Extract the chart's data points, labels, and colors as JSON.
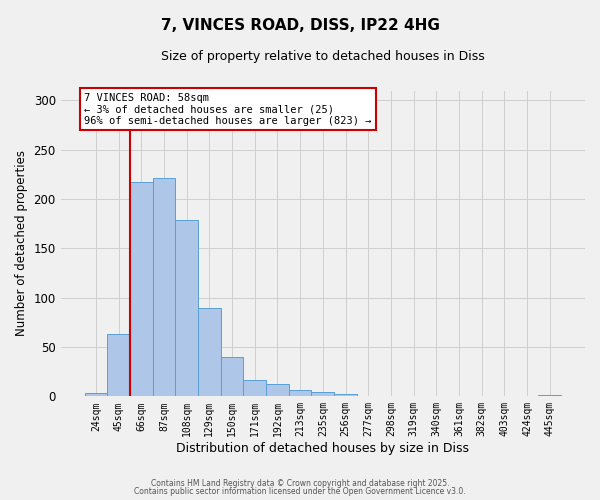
{
  "title": "7, VINCES ROAD, DISS, IP22 4HG",
  "subtitle": "Size of property relative to detached houses in Diss",
  "xlabel": "Distribution of detached houses by size in Diss",
  "ylabel": "Number of detached properties",
  "bar_labels": [
    "24sqm",
    "45sqm",
    "66sqm",
    "87sqm",
    "108sqm",
    "129sqm",
    "150sqm",
    "171sqm",
    "192sqm",
    "213sqm",
    "235sqm",
    "256sqm",
    "277sqm",
    "298sqm",
    "319sqm",
    "340sqm",
    "361sqm",
    "382sqm",
    "403sqm",
    "424sqm",
    "445sqm"
  ],
  "bar_values": [
    3,
    63,
    217,
    221,
    179,
    90,
    40,
    17,
    13,
    6,
    4,
    2,
    0,
    0,
    0,
    0,
    0,
    0,
    0,
    0,
    1
  ],
  "bar_color": "#aec6e8",
  "bar_edge_color": "#5a9fd4",
  "grid_color": "#d0d0d0",
  "background_color": "#f0f0f0",
  "vline_color": "#cc0000",
  "vline_x_index": 1.5,
  "annotation_title": "7 VINCES ROAD: 58sqm",
  "annotation_line1": "← 3% of detached houses are smaller (25)",
  "annotation_line2": "96% of semi-detached houses are larger (823) →",
  "annotation_box_facecolor": "#ffffff",
  "annotation_box_edgecolor": "#cc0000",
  "ylim": [
    0,
    310
  ],
  "yticks": [
    0,
    50,
    100,
    150,
    200,
    250,
    300
  ],
  "footer1": "Contains HM Land Registry data © Crown copyright and database right 2025.",
  "footer2": "Contains public sector information licensed under the Open Government Licence v3.0."
}
